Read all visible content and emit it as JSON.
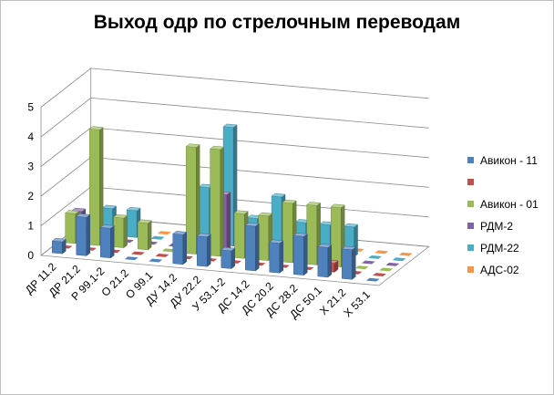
{
  "chart_data": {
    "type": "bar",
    "title": "Выход одр по стрелочным переводам",
    "categories": [
      "ДР 11.2",
      "ДР 21.2",
      "Р 99.1-2",
      "О 21.2",
      "О 99.1",
      "ДУ 14.2",
      "ДУ 22.2",
      "У 53.1-2",
      "ДС 14.2",
      "ДС 20.2",
      "ДС 28.2",
      "ДС 50.1",
      "Х 21.2",
      "Х 53.1"
    ],
    "zlim": [
      0,
      5
    ],
    "zticks": [
      0,
      1,
      2,
      3,
      4,
      5
    ],
    "grid": true,
    "legend_position": "right",
    "series": [
      {
        "name": "Авикон - 11",
        "color": "#4f81bd",
        "values": [
          0.4,
          1.3,
          1.0,
          0,
          0,
          1.0,
          1.0,
          0.6,
          1.5,
          1.0,
          1.3,
          1.0,
          1.0,
          0
        ]
      },
      {
        "name": "",
        "color": "#c0504d",
        "values": [
          0,
          0,
          0,
          0,
          0,
          0,
          0,
          0,
          0,
          0,
          0,
          0.3,
          0,
          0
        ]
      },
      {
        "name": "Авикон - 01",
        "color": "#9bbb59",
        "values": [
          1.0,
          3.9,
          1.0,
          0.9,
          0,
          3.6,
          3.6,
          1.5,
          1.5,
          2.0,
          2.0,
          2.0,
          0,
          0
        ]
      },
      {
        "name": "РДМ-2",
        "color": "#8064a2",
        "values": [
          0.9,
          0,
          0,
          0,
          0,
          0,
          1.9,
          0,
          0,
          0,
          0,
          0,
          0,
          0
        ]
      },
      {
        "name": "РДМ-22",
        "color": "#4bacc6",
        "values": [
          0,
          0.9,
          0.9,
          0,
          0,
          1.9,
          4.0,
          1.0,
          1.8,
          1.0,
          1.0,
          1.0,
          0,
          0
        ]
      },
      {
        "name": "АДС-02",
        "color": "#f79646",
        "values": [
          0,
          0,
          0,
          0,
          0,
          0,
          0,
          0,
          0,
          0,
          0,
          0,
          0,
          0
        ]
      }
    ]
  }
}
